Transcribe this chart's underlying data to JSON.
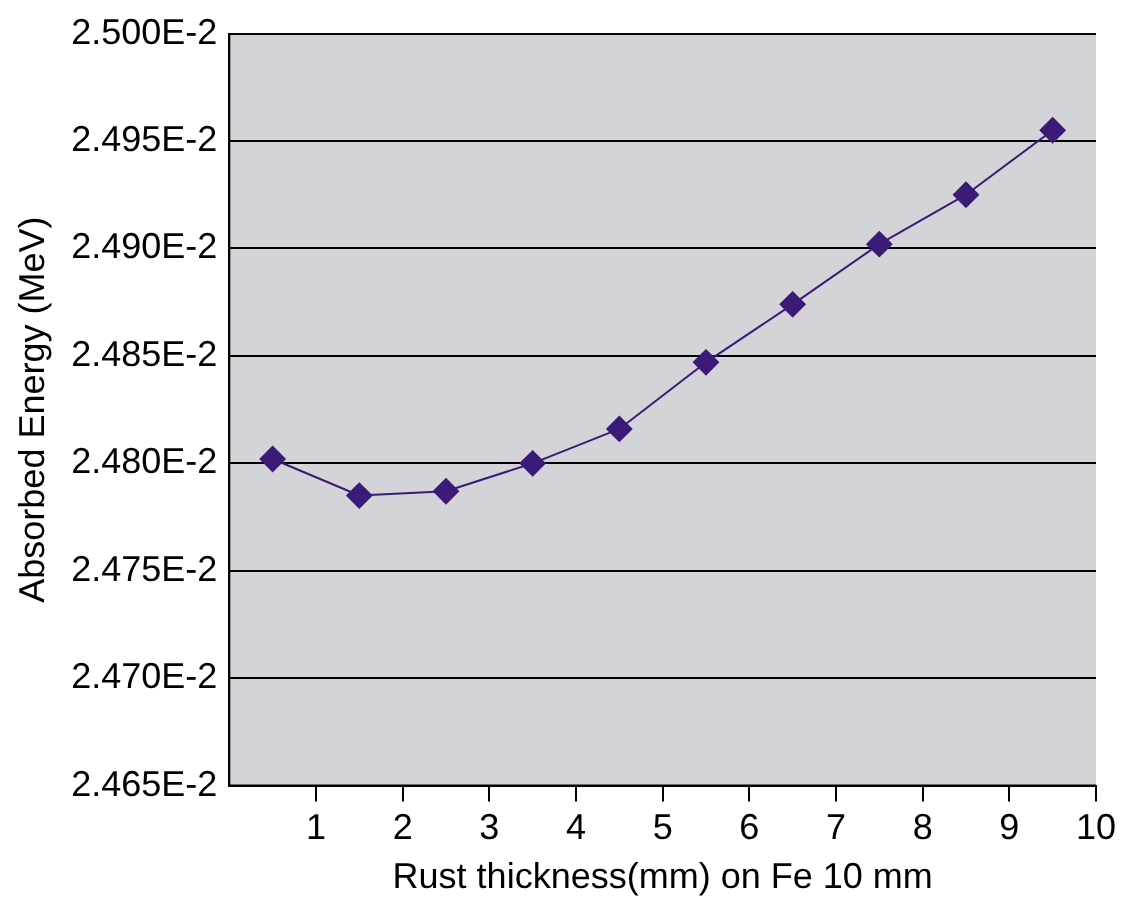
{
  "chart_data": {
    "type": "line",
    "xlabel": "Rust thickness(mm) on Fe 10 mm",
    "ylabel": "Absorbed Energy (MeV)",
    "x": [
      0.5,
      1.5,
      2.5,
      3.5,
      4.5,
      5.5,
      6.5,
      7.5,
      8.5,
      9.5
    ],
    "series": [
      {
        "color": "#3b1a78",
        "values": [
          0.024802,
          0.024785,
          0.024787,
          0.0248,
          0.024816,
          0.024847,
          0.024874,
          0.024902,
          0.024925,
          0.024955
        ]
      }
    ],
    "xlim": [
      0,
      10
    ],
    "xticks": [
      1,
      2,
      3,
      4,
      5,
      6,
      7,
      8,
      9,
      10
    ],
    "ylim": [
      0.02465,
      0.025
    ],
    "yticks": [
      {
        "value": 0.02465,
        "label": "2.465E-2"
      },
      {
        "value": 0.0247,
        "label": "2.470E-2"
      },
      {
        "value": 0.02475,
        "label": "2.475E-2"
      },
      {
        "value": 0.0248,
        "label": "2.480E-2"
      },
      {
        "value": 0.02485,
        "label": "2.485E-2"
      },
      {
        "value": 0.0249,
        "label": "2.490E-2"
      },
      {
        "value": 0.02495,
        "label": "2.495E-2"
      },
      {
        "value": 0.025,
        "label": "2.500E-2"
      }
    ],
    "grid": "y",
    "legend": false,
    "marker": "diamond",
    "line_style": "solid"
  }
}
